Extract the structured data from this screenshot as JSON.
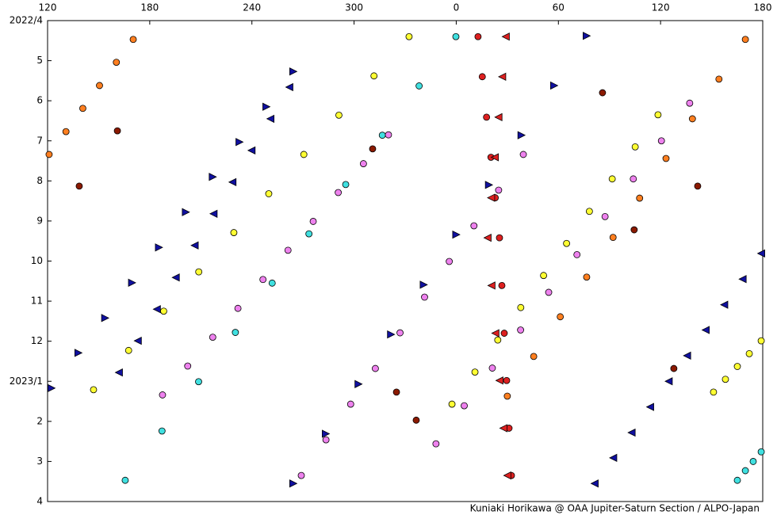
{
  "chart_data": {
    "type": "scatter",
    "credit": "Kuniaki Horikawa @ OAA Jupiter-Saturn Section / ALPO-Japan",
    "xlim": [
      120,
      540
    ],
    "xticks": [
      120,
      180,
      240,
      300,
      {
        "value": 360,
        "label": "0"
      },
      {
        "value": 420,
        "label": "60"
      },
      {
        "value": 480,
        "label": "120"
      },
      {
        "value": 540,
        "label": "180"
      }
    ],
    "xaxis_position": "top",
    "ylim": [
      0,
      12
    ],
    "yaxis_reversed": true,
    "yticks": [
      {
        "value": 0,
        "label": "2022/4"
      },
      {
        "value": 1,
        "label": "5"
      },
      {
        "value": 2,
        "label": "6"
      },
      {
        "value": 3,
        "label": "7"
      },
      {
        "value": 4,
        "label": "8"
      },
      {
        "value": 5,
        "label": "9"
      },
      {
        "value": 6,
        "label": "10"
      },
      {
        "value": 7,
        "label": "11"
      },
      {
        "value": 8,
        "label": "12"
      },
      {
        "value": 9,
        "label": "2023/1"
      },
      {
        "value": 10,
        "label": "2"
      },
      {
        "value": 11,
        "label": "3"
      },
      {
        "value": 12,
        "label": "4"
      }
    ],
    "series": [
      {
        "color": "#40e0e0",
        "marker": "circle",
        "x": [
          359.8,
          338.2,
          316.6,
          295.1,
          273.5,
          251.9,
          230.3,
          208.7,
          187.2,
          165.6
        ],
        "y": [
          0.4,
          1.63,
          2.86,
          4.09,
          5.32,
          6.55,
          7.78,
          9.01,
          10.24,
          11.47
        ]
      },
      {
        "color": "#ffff33",
        "marker": "circle",
        "x": [
          332.3,
          311.7,
          291.1,
          270.5,
          249.9,
          229.4,
          208.8,
          188.2,
          167.6,
          147.0
        ],
        "y": [
          0.4,
          1.38,
          2.36,
          3.34,
          4.32,
          5.29,
          6.27,
          7.25,
          8.23,
          9.21
        ]
      },
      {
        "color": "#ee82ee",
        "marker": "circle",
        "x": [
          320.2,
          305.5,
          290.7,
          276.0,
          261.2,
          246.5,
          231.8,
          217.0,
          202.3,
          187.5
        ],
        "y": [
          2.85,
          3.57,
          4.29,
          5.01,
          5.73,
          6.46,
          7.18,
          7.9,
          8.62,
          9.34
        ]
      },
      {
        "color": "#ee82ee",
        "marker": "circle",
        "x": [
          399.4,
          384.9,
          370.4,
          355.9,
          341.4,
          327.0,
          312.5,
          298.0,
          283.5,
          269.0
        ],
        "y": [
          3.34,
          4.23,
          5.12,
          6.01,
          6.9,
          7.79,
          8.68,
          9.57,
          10.46,
          11.35
        ]
      },
      {
        "color": "#1010a0",
        "marker": "triangle-right",
        "x": [
          264.3,
          248.5,
          232.7,
          217.0,
          201.2,
          185.4,
          169.6,
          153.8,
          138.1,
          122.3
        ],
        "y": [
          1.27,
          2.15,
          3.03,
          3.9,
          4.78,
          5.66,
          6.54,
          7.42,
          8.29,
          9.17
        ]
      },
      {
        "color": "#1010a0",
        "marker": "triangle-right",
        "x": [
          436.6,
          417.5,
          398.3,
          379.2,
          360.0,
          340.9,
          321.7,
          302.6,
          283.4,
          264.3
        ],
        "y": [
          0.38,
          1.62,
          2.86,
          4.1,
          5.34,
          6.59,
          7.83,
          9.07,
          10.31,
          11.55
        ]
      },
      {
        "color": "#1010a0",
        "marker": "triangle-left",
        "x": [
          539.1,
          528.2,
          517.4,
          506.5,
          495.6,
          484.8,
          473.9,
          463.0,
          452.2,
          441.3
        ],
        "y": [
          5.81,
          6.45,
          7.09,
          7.72,
          8.36,
          9.0,
          9.64,
          10.28,
          10.91,
          11.55
        ]
      },
      {
        "color": "#1010a0",
        "marker": "triangle-left",
        "x": [
          262.0,
          250.9,
          239.8,
          228.6,
          217.5,
          206.4,
          195.3,
          184.2,
          173.0,
          161.9
        ],
        "y": [
          1.66,
          2.45,
          3.24,
          4.03,
          4.82,
          5.61,
          6.41,
          7.2,
          7.99,
          8.78
        ]
      },
      {
        "color": "#dd2020",
        "marker": "circle",
        "x": [
          372.8,
          375.3,
          377.8,
          380.4,
          382.9,
          385.4,
          386.8,
          388.2,
          389.6,
          391.0,
          392.4
        ],
        "y": [
          0.4,
          1.4,
          2.41,
          3.41,
          4.42,
          5.42,
          6.61,
          7.8,
          8.98,
          10.17,
          11.35
        ]
      },
      {
        "color": "#dd2020",
        "marker": "triangle-left",
        "x": [
          389.1,
          387.0,
          384.8,
          382.7,
          380.5,
          378.4,
          380.7,
          383.0,
          385.4,
          387.7,
          390.0
        ],
        "y": [
          0.4,
          1.4,
          2.41,
          3.41,
          4.42,
          5.42,
          6.61,
          7.8,
          8.98,
          10.17,
          11.35
        ]
      },
      {
        "color": "#ff7f20",
        "marker": "circle",
        "x": [
          529.8,
          514.3,
          498.7,
          483.2,
          467.7,
          452.1,
          436.6,
          421.1,
          405.5,
          390.0
        ],
        "y": [
          0.47,
          1.46,
          2.45,
          3.44,
          4.43,
          5.41,
          6.4,
          7.39,
          8.38,
          9.37
        ]
      },
      {
        "color": "#ff7f20",
        "marker": "circle",
        "x": [
          170.3,
          160.4,
          150.5,
          140.7,
          130.8,
          120.9
        ],
        "y": [
          0.47,
          1.04,
          1.62,
          2.19,
          2.77,
          3.34
        ]
      },
      {
        "color": "#ffff33",
        "marker": "circle",
        "x": [
          478.5,
          465.1,
          451.6,
          438.2,
          424.8,
          411.3,
          397.9,
          384.4,
          371.0,
          357.5
        ],
        "y": [
          2.35,
          3.15,
          3.95,
          4.76,
          5.56,
          6.36,
          7.16,
          7.97,
          8.77,
          9.57
        ]
      },
      {
        "color": "#ffff33",
        "marker": "circle",
        "x": [
          539.1,
          532.1,
          525.1,
          518.1,
          511.1
        ],
        "y": [
          7.99,
          8.31,
          8.63,
          8.95,
          9.27
        ]
      },
      {
        "color": "#ee82ee",
        "marker": "circle",
        "x": [
          497.1,
          480.5,
          464.0,
          447.4,
          430.9,
          414.3,
          397.8,
          381.2,
          364.7,
          348.1
        ],
        "y": [
          2.06,
          3.0,
          3.95,
          4.89,
          5.84,
          6.78,
          7.72,
          8.67,
          9.61,
          10.56
        ]
      },
      {
        "color": "#40e0e0",
        "marker": "circle",
        "x": [
          539.1,
          534.4,
          529.8,
          525.1
        ],
        "y": [
          10.76,
          11.0,
          11.23,
          11.47
        ]
      },
      {
        "color": "#8b1a00",
        "marker": "circle",
        "x": [
          161.0,
          138.6,
          310.9,
          445.9,
          464.5,
          487.8,
          324.9,
          336.5,
          501.8
        ],
        "y": [
          2.75,
          4.13,
          3.2,
          1.8,
          5.22,
          8.68,
          9.27,
          9.97,
          4.13
        ]
      }
    ]
  }
}
